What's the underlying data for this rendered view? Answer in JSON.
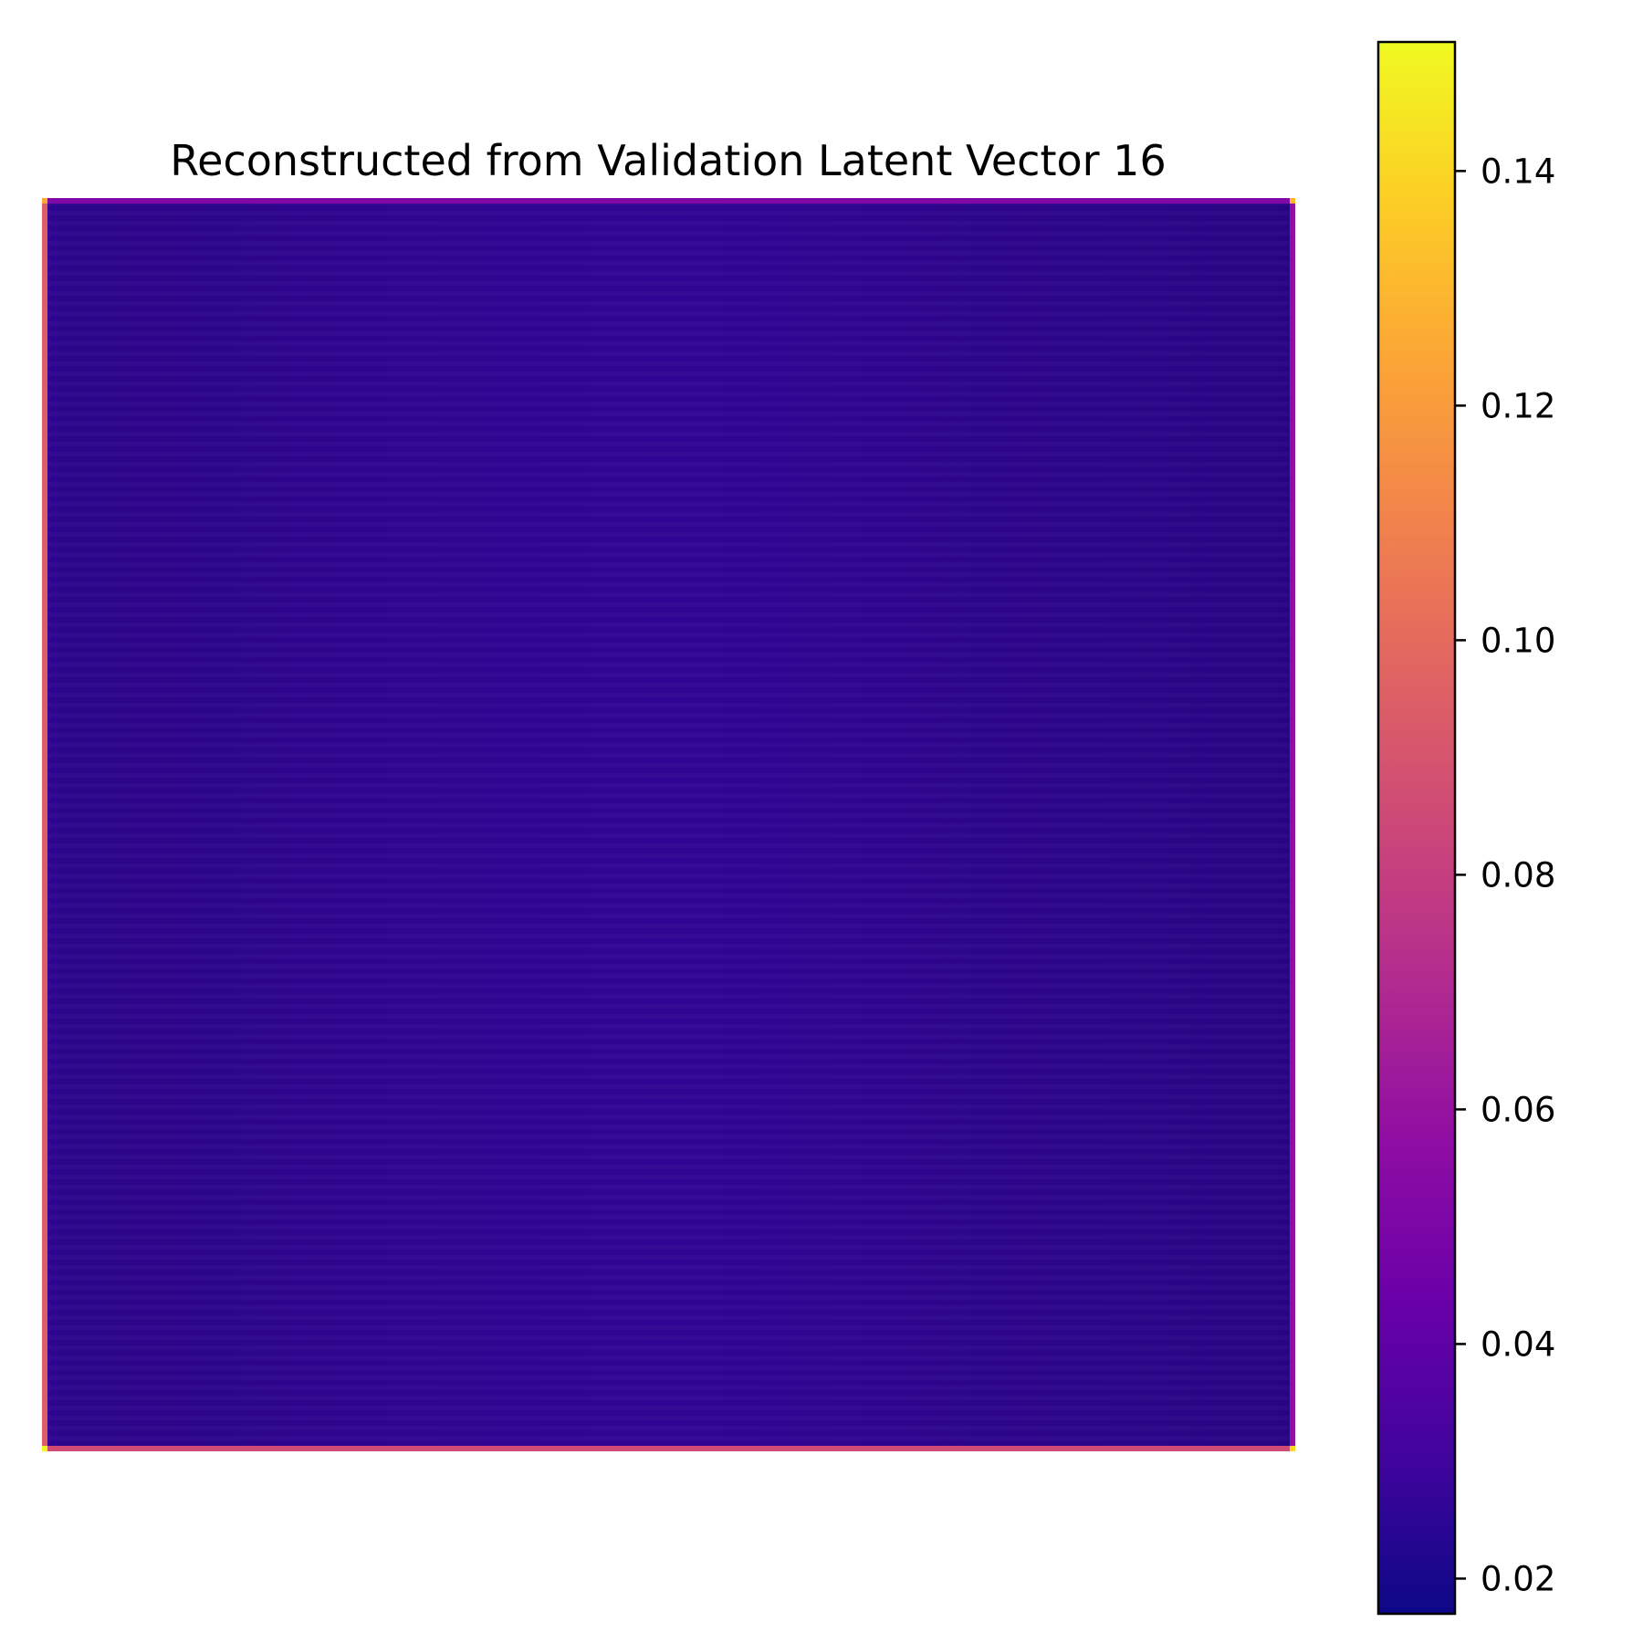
{
  "chart_data": {
    "type": "heatmap",
    "title": "Reconstructed from Validation Latent Vector 16",
    "colormap": "plasma",
    "axes_visible": false,
    "colorbar": {
      "position": "right",
      "min": 0.017,
      "max": 0.151,
      "ticks": [
        0.02,
        0.04,
        0.06,
        0.08,
        0.1,
        0.12,
        0.14
      ],
      "tick_labels": [
        "0.02",
        "0.04",
        "0.06",
        "0.08",
        "0.10",
        "0.12",
        "0.14"
      ]
    },
    "field": {
      "interior_value": 0.026,
      "interior_range": [
        0.02,
        0.032
      ],
      "top_edge_value": 0.052,
      "bottom_edge_value": 0.086,
      "left_edge_value": 0.095,
      "right_edge_value": 0.058,
      "corner_values": {
        "top_left": 0.125,
        "top_right": 0.13,
        "bottom_left": 0.15,
        "bottom_right": 0.14
      }
    }
  }
}
